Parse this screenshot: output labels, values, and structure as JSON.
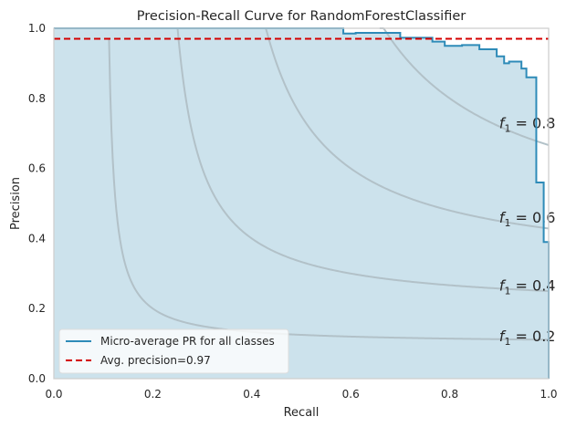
{
  "chart_data": {
    "type": "line",
    "title": "Precision-Recall Curve for RandomForestClassifier",
    "xlabel": "Recall",
    "ylabel": "Precision",
    "xlim": [
      0,
      1
    ],
    "ylim": [
      0,
      1
    ],
    "x_ticks": [
      "0.0",
      "0.2",
      "0.4",
      "0.6",
      "0.8",
      "1.0"
    ],
    "y_ticks": [
      "0.0",
      "0.2",
      "0.4",
      "0.6",
      "0.8",
      "1.0"
    ],
    "grid": false,
    "legend_position": "lower-left",
    "colors": {
      "pr_curve": "#2e8bb8",
      "fill": "#cce2ec",
      "avg_precision": "#d40000",
      "iso_f1": "#b2c1c8",
      "frame": "#cfcfcf"
    },
    "series": [
      {
        "name": "Micro-average PR for all classes",
        "style": "step",
        "x": [
          0,
          0.585,
          0.585,
          0.61,
          0.61,
          0.7,
          0.7,
          0.765,
          0.765,
          0.79,
          0.79,
          0.825,
          0.825,
          0.86,
          0.86,
          0.895,
          0.895,
          0.91,
          0.91,
          0.92,
          0.92,
          0.945,
          0.945,
          0.955,
          0.955,
          0.965,
          0.965,
          0.975,
          0.975,
          0.982,
          0.982,
          0.99,
          0.99,
          1.0,
          1.0
        ],
        "y": [
          1.0,
          1.0,
          0.985,
          0.985,
          0.987,
          0.987,
          0.973,
          0.973,
          0.962,
          0.962,
          0.95,
          0.95,
          0.952,
          0.952,
          0.94,
          0.94,
          0.92,
          0.92,
          0.9,
          0.9,
          0.905,
          0.905,
          0.885,
          0.885,
          0.86,
          0.86,
          0.86,
          0.86,
          0.56,
          0.56,
          0.56,
          0.56,
          0.39,
          0.39,
          0.0
        ]
      },
      {
        "name": "Avg. precision=0.97",
        "style": "dashed",
        "value": 0.97
      }
    ],
    "iso_f1": [
      {
        "f1": 0.2,
        "label_main": "f",
        "label_sub": "1",
        "label_rest": " = 0.2"
      },
      {
        "f1": 0.4,
        "label_main": "f",
        "label_sub": "1",
        "label_rest": " = 0.4"
      },
      {
        "f1": 0.6,
        "label_main": "f",
        "label_sub": "1",
        "label_rest": " = 0.6"
      },
      {
        "f1": 0.8,
        "label_main": "f",
        "label_sub": "1",
        "label_rest": " = 0.8"
      }
    ]
  }
}
